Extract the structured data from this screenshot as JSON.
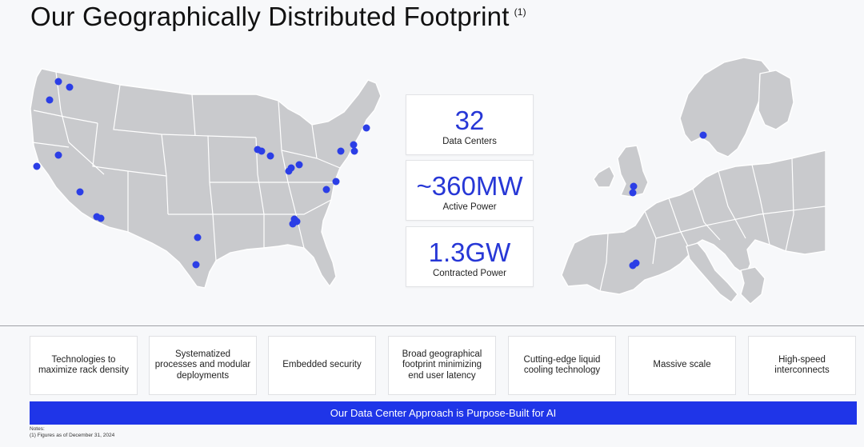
{
  "title": "Our Geographically Distributed Footprint",
  "title_note": "(1)",
  "stats": [
    {
      "value": "32",
      "label": "Data Centers"
    },
    {
      "value": "~360MW",
      "label": "Active Power"
    },
    {
      "value": "1.3GW",
      "label": "Contracted Power"
    }
  ],
  "features": [
    "Technologies to maximize rack density",
    "Systematized processes and modular deployments",
    "Embedded security",
    "Broad geographical footprint minimizing end user latency",
    "Cutting-edge liquid cooling technology",
    "Massive scale",
    "High-speed interconnects"
  ],
  "banner": "Our Data Center Approach is Purpose-Built for AI",
  "notes": {
    "heading": "Notes:",
    "line1": "(1) Figures as of December 31, 2024"
  },
  "colors": {
    "accent": "#1f35e8",
    "marker": "#2b3ee6",
    "land": "#c9cacd"
  }
}
